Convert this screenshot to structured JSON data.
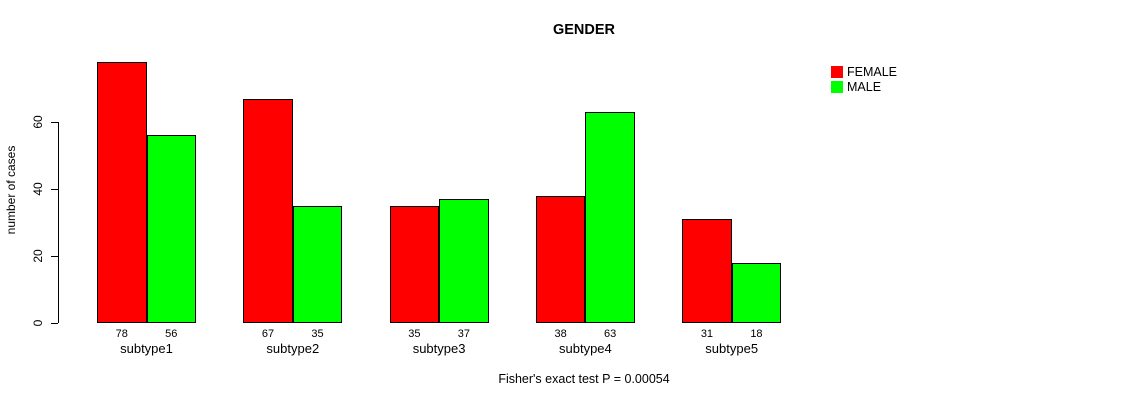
{
  "figure": {
    "title": "GENDER",
    "y_axis_label": "number of cases",
    "caption": "Fisher's exact test P = 0.00054"
  },
  "legend": {
    "position": "top-right",
    "items": [
      {
        "label": "FEMALE",
        "color": "#FF0000"
      },
      {
        "label": "MALE",
        "color": "#00FF00"
      }
    ]
  },
  "chart_data": {
    "type": "bar",
    "title": "GENDER",
    "xlabel": "",
    "ylabel": "number of cases",
    "categories": [
      "subtype1",
      "subtype2",
      "subtype3",
      "subtype4",
      "subtype5"
    ],
    "series": [
      {
        "name": "FEMALE",
        "color": "#FF0000",
        "values": [
          78,
          67,
          35,
          38,
          31
        ]
      },
      {
        "name": "MALE",
        "color": "#00FF00",
        "values": [
          56,
          35,
          37,
          63,
          18
        ]
      }
    ],
    "bar_value_labels": [
      [
        78,
        67,
        35,
        38,
        31
      ],
      [
        56,
        35,
        37,
        63,
        18
      ]
    ],
    "y_ticks": [
      0,
      20,
      40,
      60
    ],
    "ylim": [
      0,
      78
    ],
    "grid": false,
    "legend_position": "top-right",
    "annotation": "Fisher's exact test P = 0.00054"
  }
}
